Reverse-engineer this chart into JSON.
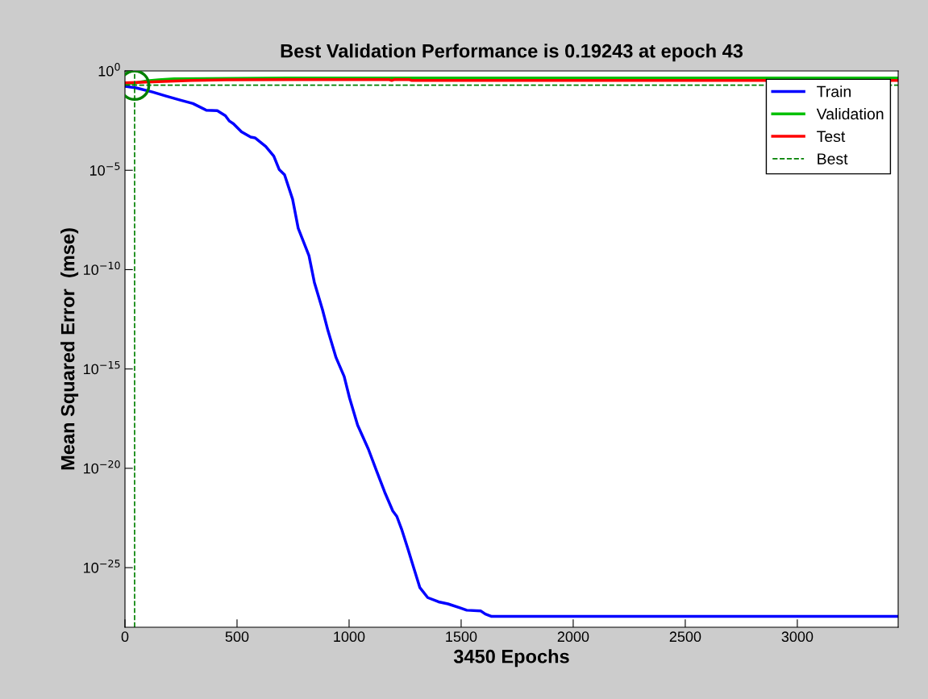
{
  "chart_data": {
    "type": "line",
    "title": "Best Validation Performance is 0.19243 at epoch 43",
    "xlabel": "3450 Epochs",
    "ylabel": "Mean Squared Error  (mse)",
    "log": "y",
    "xlim": [
      0,
      3450
    ],
    "ylim": [
      1e-28,
      1
    ],
    "xticks": [
      0,
      500,
      1000,
      1500,
      2000,
      2500,
      3000
    ],
    "yticks": [
      {
        "value": 1,
        "label": "10$^{0}$"
      },
      {
        "value": 1e-05,
        "label": "10$^{−5}$"
      },
      {
        "value": 1e-10,
        "label": "10$^{−10}$"
      },
      {
        "value": 1e-15,
        "label": "10$^{−15}$"
      },
      {
        "value": 1e-20,
        "label": "10$^{−20}$"
      },
      {
        "value": 1e-25,
        "label": "10$^{−25}$"
      }
    ],
    "grid": false,
    "legend": "top right",
    "series": [
      {
        "name": "Train",
        "color": "#0000ff",
        "x": [
          0,
          50,
          123,
          183,
          243,
          303,
          363,
          412,
          448,
          466,
          484,
          520,
          561,
          580,
          628,
          664,
          688,
          712,
          748,
          773,
          821,
          845,
          881,
          906,
          942,
          978,
          1002,
          1038,
          1086,
          1122,
          1159,
          1195,
          1213,
          1234,
          1261,
          1282,
          1316,
          1351,
          1399,
          1441,
          1497,
          1525,
          1588,
          1608,
          1636,
          3450
        ],
        "values": [
          0.17,
          0.14,
          0.087,
          0.055,
          0.035,
          0.023,
          0.0105,
          0.01,
          0.0056,
          0.003,
          0.0022,
          0.00087,
          0.00047,
          0.00043,
          0.00016,
          5.2e-05,
          1.1e-05,
          6e-06,
          3.5e-07,
          1.2e-08,
          5e-10,
          2.3e-11,
          1e-12,
          8.3e-14,
          3.7e-15,
          4.2e-16,
          3.5e-17,
          1.5e-18,
          9.3e-20,
          7.8e-21,
          6.3e-22,
          7.1e-23,
          3.8e-23,
          8.9e-24,
          1e-24,
          1.7e-25,
          9.8e-27,
          3.1e-27,
          1.9e-27,
          1.5e-27,
          9.3e-28,
          7.2e-28,
          6.6e-28,
          4.6e-28,
          3.5e-28,
          3.5e-28
        ]
      },
      {
        "name": "Validation",
        "color": "#00c000",
        "x": [
          0,
          50,
          100,
          150,
          219,
          725,
          3450
        ],
        "values": [
          0.224,
          0.251,
          0.316,
          0.355,
          0.407,
          0.437,
          0.437
        ]
      },
      {
        "name": "Test",
        "color": "#ff0000",
        "x": [
          0,
          200,
          300,
          450,
          725,
          1180,
          1190,
          1200,
          1270,
          1280,
          3450
        ],
        "values": [
          0.251,
          0.302,
          0.331,
          0.355,
          0.363,
          0.363,
          0.331,
          0.363,
          0.363,
          0.331,
          0.331
        ]
      },
      {
        "type": "scatter",
        "marker": "circle",
        "color": "#008000",
        "x": [
          43
        ],
        "values": [
          0.19243
        ]
      }
    ],
    "ref_lines": [
      {
        "axis": "y",
        "value": 0.19243,
        "label": "Best",
        "color": "#008000",
        "line_style": "dashed"
      },
      {
        "axis": "x",
        "value": 43,
        "color": "#008000",
        "line_style": "dashed"
      }
    ]
  }
}
